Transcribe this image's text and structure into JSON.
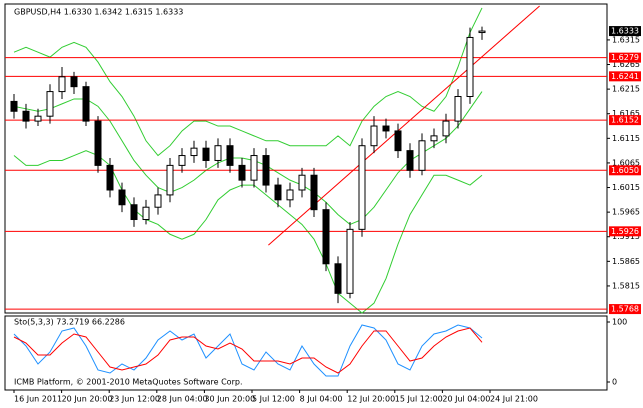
{
  "chart_data": {
    "type": "candlestick",
    "title": "GBPUSD,H4 1.6330 1.6342 1.6315 1.6333",
    "footer": "ICMB Platform, © 2001-2010 MetaQuotes Software Corp.",
    "x_tick_labels": [
      "16 Jun 2011",
      "20 Jun 20:00",
      "23 Jun 12:00",
      "28 Jun 04:00",
      "30 Jun 20:00",
      "5 Jul 12:00",
      "8 Jul 04:00",
      "12 Jul 20:00",
      "15 Jul 12:00",
      "20 Jul 04:00",
      "24 Jul 21:00"
    ],
    "open": [
      1.619,
      1.617,
      1.615,
      1.616,
      1.621,
      1.624,
      1.622,
      1.615,
      1.606,
      1.601,
      1.598,
      1.595,
      1.5975,
      1.6,
      1.606,
      1.608,
      1.6095,
      1.607,
      1.61,
      1.606,
      1.603,
      1.608,
      1.602,
      1.599,
      1.601,
      1.604,
      1.597,
      1.586,
      1.58,
      1.593,
      1.61,
      1.614,
      1.613,
      1.609,
      1.605,
      1.611,
      1.612,
      1.615,
      1.62,
      1.633
    ],
    "high": [
      1.6205,
      1.6185,
      1.6175,
      1.6225,
      1.626,
      1.625,
      1.623,
      1.616,
      1.6075,
      1.6025,
      1.5995,
      1.599,
      1.6015,
      1.6075,
      1.6095,
      1.611,
      1.611,
      1.6115,
      1.6115,
      1.6075,
      1.6095,
      1.6095,
      1.6035,
      1.6025,
      1.6055,
      1.6055,
      1.5985,
      1.5875,
      1.5945,
      1.6115,
      1.616,
      1.6155,
      1.6145,
      1.6105,
      1.6125,
      1.6135,
      1.6165,
      1.6215,
      1.634,
      1.6342
    ],
    "low": [
      1.6155,
      1.6135,
      1.614,
      1.6145,
      1.6195,
      1.6205,
      1.614,
      1.6045,
      1.5995,
      1.5965,
      1.5935,
      1.594,
      1.596,
      1.5985,
      1.6045,
      1.6065,
      1.6055,
      1.6055,
      1.6045,
      1.6015,
      1.6015,
      1.6005,
      1.5975,
      1.5975,
      1.5995,
      1.5955,
      1.5845,
      1.578,
      1.579,
      1.5915,
      1.6085,
      1.6115,
      1.6075,
      1.6035,
      1.604,
      1.6095,
      1.6105,
      1.6135,
      1.6185,
      1.6315
    ],
    "close": [
      1.617,
      1.615,
      1.616,
      1.621,
      1.624,
      1.622,
      1.615,
      1.606,
      1.601,
      1.598,
      1.595,
      1.5975,
      1.6,
      1.606,
      1.608,
      1.6095,
      1.607,
      1.61,
      1.606,
      1.603,
      1.608,
      1.602,
      1.599,
      1.601,
      1.604,
      1.597,
      1.586,
      1.58,
      1.593,
      1.61,
      1.614,
      1.613,
      1.609,
      1.605,
      1.611,
      1.612,
      1.615,
      1.62,
      1.632,
      1.6333
    ],
    "bands": {
      "color": "#32cd32",
      "upper": [
        1.629,
        1.63,
        1.629,
        1.628,
        1.63,
        1.631,
        1.63,
        1.627,
        1.623,
        1.62,
        1.616,
        1.611,
        1.608,
        1.61,
        1.613,
        1.615,
        1.615,
        1.614,
        1.614,
        1.613,
        1.612,
        1.611,
        1.611,
        1.61,
        1.61,
        1.61,
        1.61,
        1.612,
        1.61,
        1.615,
        1.618,
        1.62,
        1.621,
        1.62,
        1.618,
        1.617,
        1.62,
        1.626,
        1.633,
        1.638
      ],
      "middle": [
        1.618,
        1.6175,
        1.617,
        1.6175,
        1.6185,
        1.6195,
        1.6195,
        1.618,
        1.615,
        1.611,
        1.607,
        1.604,
        1.6015,
        1.6005,
        1.6015,
        1.603,
        1.605,
        1.6065,
        1.6075,
        1.6075,
        1.607,
        1.606,
        1.6045,
        1.603,
        1.602,
        1.6005,
        1.5985,
        1.596,
        1.594,
        1.595,
        1.5975,
        1.601,
        1.6045,
        1.607,
        1.6085,
        1.61,
        1.6115,
        1.614,
        1.6175,
        1.621
      ],
      "lower": [
        1.608,
        1.606,
        1.606,
        1.607,
        1.607,
        1.608,
        1.609,
        1.608,
        1.606,
        1.601,
        1.597,
        1.595,
        1.594,
        1.592,
        1.591,
        1.592,
        1.595,
        1.599,
        1.601,
        1.602,
        1.602,
        1.6,
        1.598,
        1.596,
        1.594,
        1.591,
        1.586,
        1.58,
        1.578,
        1.576,
        1.578,
        1.583,
        1.59,
        1.596,
        1.6,
        1.604,
        1.604,
        1.603,
        1.602,
        1.604
      ]
    },
    "levels": {
      "color": "#ff0000",
      "values": [
        1.6279,
        1.6241,
        1.6152,
        {
          "value": 1.605,
          "label": "1.6050"
        },
        1.5926,
        1.5768
      ]
    },
    "last_price": 1.6333,
    "trend_line": {
      "color": "#ff0000",
      "x": [
        21.2,
        43.8
      ],
      "y": [
        1.5898,
        1.6384
      ]
    },
    "ylim": [
      1.576,
      1.6388
    ],
    "yticks": [
      1.6315,
      1.6265,
      1.6215,
      1.6165,
      1.6115,
      1.6065,
      1.6015,
      1.5965,
      1.5915,
      1.5865,
      1.5815
    ],
    "indicator": {
      "type": "line",
      "title": "Sto(5,3,3) 73.2719 66.2286",
      "ylim": [
        0,
        100
      ],
      "yticks": [
        100,
        0
      ],
      "series": [
        {
          "color": "#1e90ff",
          "values": [
            80,
            60,
            30,
            50,
            85,
            90,
            60,
            20,
            15,
            30,
            20,
            40,
            70,
            85,
            70,
            80,
            40,
            60,
            80,
            30,
            20,
            50,
            30,
            20,
            60,
            30,
            10,
            10,
            60,
            95,
            90,
            70,
            30,
            20,
            60,
            80,
            85,
            95,
            90,
            73.2719
          ]
        },
        {
          "color": "#ff0000",
          "values": [
            75,
            65,
            45,
            45,
            65,
            80,
            75,
            50,
            25,
            20,
            25,
            30,
            45,
            70,
            75,
            75,
            60,
            55,
            65,
            55,
            35,
            35,
            35,
            30,
            40,
            40,
            25,
            15,
            30,
            60,
            85,
            85,
            60,
            35,
            40,
            60,
            75,
            85,
            90,
            66.2286
          ]
        }
      ]
    }
  }
}
